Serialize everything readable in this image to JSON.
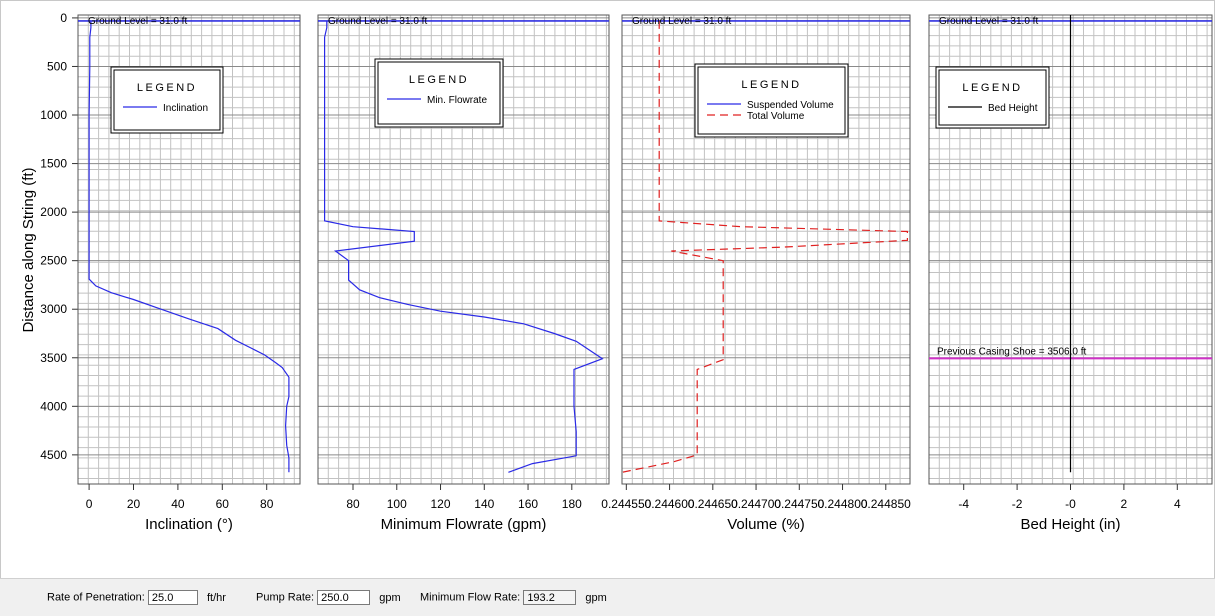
{
  "chart_data": [
    {
      "type": "line",
      "xlabel": "Inclination (°)",
      "ylabel": "Distance along String (ft)",
      "xlim": [
        -5,
        95
      ],
      "ylim": [
        4800,
        -30
      ],
      "xticks": [
        0,
        20,
        40,
        60,
        80
      ],
      "yticks": [
        0,
        500,
        1000,
        1500,
        2000,
        2500,
        3000,
        3500,
        4000,
        4500
      ],
      "ground_level_label": "Ground Level = 31.0 ft",
      "ground_level": 31,
      "legend": {
        "title": "LEGEND",
        "placement": "top-left"
      },
      "series": [
        {
          "name": "Inclination",
          "color": "#2a2ae6",
          "dash": "none",
          "points": [
            [
              0.8,
              31
            ],
            [
              0.8,
              100
            ],
            [
              0.3,
              200
            ],
            [
              0.3,
              500
            ],
            [
              0,
              1000
            ],
            [
              0,
              2000
            ],
            [
              0,
              2690
            ],
            [
              3,
              2760
            ],
            [
              10,
              2830
            ],
            [
              20,
              2900
            ],
            [
              30,
              2980
            ],
            [
              45,
              3100
            ],
            [
              58,
              3200
            ],
            [
              66,
              3320
            ],
            [
              73,
              3400
            ],
            [
              79,
              3470
            ],
            [
              84,
              3550
            ],
            [
              87,
              3600
            ],
            [
              90,
              3700
            ],
            [
              90,
              3900
            ],
            [
              89,
              4000
            ],
            [
              88.5,
              4200
            ],
            [
              89,
              4400
            ],
            [
              90,
              4530
            ],
            [
              90,
              4680
            ]
          ]
        }
      ]
    },
    {
      "type": "line",
      "xlabel": "Minimum Flowrate (gpm)",
      "xlim": [
        64,
        197
      ],
      "ylim": [
        4800,
        -30
      ],
      "xticks": [
        80,
        100,
        120,
        140,
        160,
        180
      ],
      "ground_level_label": "Ground Level = 31.0 ft",
      "ground_level": 31,
      "legend": {
        "title": "LEGEND",
        "placement": "top-left"
      },
      "series": [
        {
          "name": "Min. Flowrate",
          "color": "#2a2ae6",
          "dash": "none",
          "points": [
            [
              68,
              31
            ],
            [
              68,
              100
            ],
            [
              67,
              200
            ],
            [
              67,
              1000
            ],
            [
              67,
              2090
            ],
            [
              80,
              2150
            ],
            [
              108,
              2200
            ],
            [
              108,
              2300
            ],
            [
              72,
              2400
            ],
            [
              78,
              2500
            ],
            [
              78,
              2700
            ],
            [
              83,
              2800
            ],
            [
              92,
              2880
            ],
            [
              105,
              2950
            ],
            [
              120,
              3020
            ],
            [
              140,
              3080
            ],
            [
              158,
              3150
            ],
            [
              172,
              3250
            ],
            [
              182,
              3330
            ],
            [
              188,
              3420
            ],
            [
              194,
              3510
            ],
            [
              181,
              3620
            ],
            [
              181,
              4000
            ],
            [
              182,
              4260
            ],
            [
              182,
              4510
            ],
            [
              162,
              4590
            ],
            [
              151,
              4680
            ]
          ]
        }
      ]
    },
    {
      "type": "line",
      "xlabel": "Volume (%)",
      "xlim": [
        0.244545,
        0.244878
      ],
      "ylim": [
        4800,
        -30
      ],
      "xticks": [
        "0.244550",
        "0.244600",
        "0.244650",
        "0.244700",
        "0.244750",
        "0.244800",
        "0.244850"
      ],
      "xtick_values": [
        0.24455,
        0.2446,
        0.24465,
        0.2447,
        0.24475,
        0.2448,
        0.24485
      ],
      "ground_level_label": "Ground Level = 31.0 ft",
      "ground_level": 31,
      "legend": {
        "title": "LEGEND",
        "placement": "top-center"
      },
      "series": [
        {
          "name": "Suspended Volume",
          "color": "#2a2ae6",
          "dash": "none",
          "points": []
        },
        {
          "name": "Total Volume",
          "color": "#e02020",
          "dash": "8,5",
          "points": [
            [
              0.244588,
              31
            ],
            [
              0.244588,
              2090
            ],
            [
              0.244683,
              2150
            ],
            [
              0.244875,
              2200
            ],
            [
              0.244875,
              2290
            ],
            [
              0.244732,
              2360
            ],
            [
              0.244602,
              2400
            ],
            [
              0.244662,
              2500
            ],
            [
              0.244662,
              3000
            ],
            [
              0.244662,
              3520
            ],
            [
              0.244632,
              3620
            ],
            [
              0.244632,
              4500
            ],
            [
              0.244605,
              4570
            ],
            [
              0.244545,
              4680
            ]
          ]
        }
      ]
    },
    {
      "type": "line",
      "xlabel": "Bed Height (in)",
      "xlim": [
        -5.3,
        5.3
      ],
      "ylim": [
        4800,
        -30
      ],
      "xticks": [
        "-4",
        "-2",
        "-0",
        "2",
        "4"
      ],
      "xtick_values": [
        -4,
        -2,
        0,
        2,
        4
      ],
      "ground_level_label": "Ground Level = 31.0 ft",
      "ground_level": 31,
      "annotation": "Previous Casing Shoe = 3506.0 ft",
      "casing_shoe": 3506,
      "legend": {
        "title": "LEGEND",
        "placement": "top-left"
      },
      "series": [
        {
          "name": "Bed Height",
          "color": "#000000",
          "dash": "none",
          "points": [
            [
              0,
              -30
            ],
            [
              0,
              4680
            ]
          ]
        }
      ]
    }
  ],
  "controls": {
    "rop_label": "Rate of Penetration:",
    "rop_value": "25.0",
    "rop_unit": "ft/hr",
    "pump_label": "Pump Rate:",
    "pump_value": "250.0",
    "pump_unit": "gpm",
    "mfr_label": "Minimum Flow Rate:",
    "mfr_value": "193.2",
    "mfr_unit": "gpm"
  }
}
